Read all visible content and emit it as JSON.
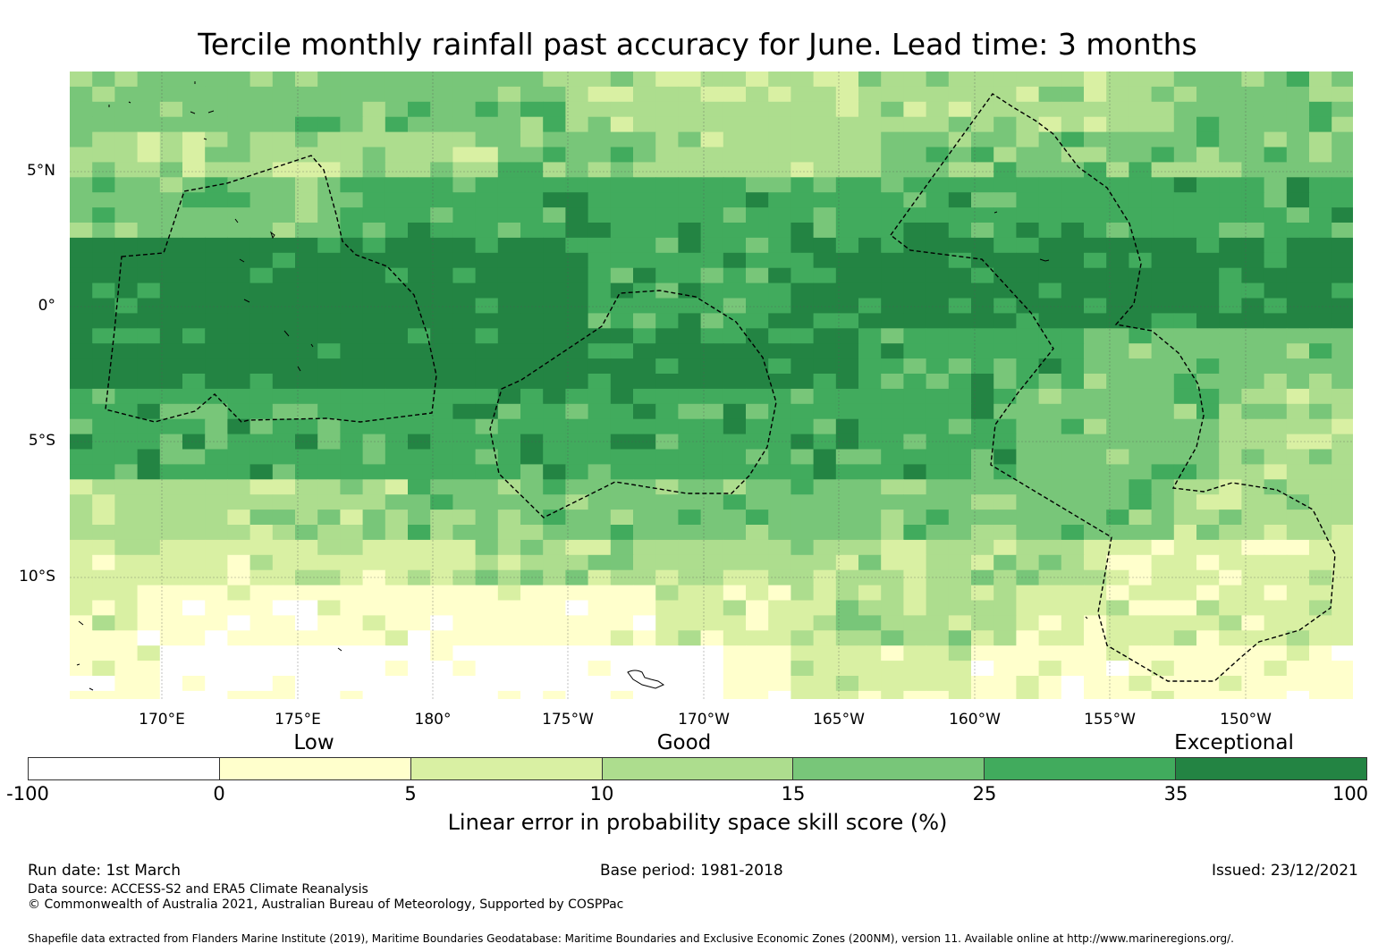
{
  "title": "Tercile monthly rainfall past accuracy for June. Lead time: 3 months",
  "map": {
    "lon_labels": [
      "170°E",
      "175°E",
      "180°",
      "175°W",
      "170°W",
      "165°W",
      "160°W",
      "155°W",
      "150°W"
    ],
    "lat_labels": [
      "5°N",
      "0°",
      "5°S",
      "10°S"
    ],
    "colors": [
      "#ffffff",
      "#ffffcc",
      "#d9f0a3",
      "#addd8e",
      "#78c679",
      "#41ab5d",
      "#238443"
    ]
  },
  "legend": {
    "categories": [
      "Low",
      "Good",
      "Exceptional"
    ],
    "bounds": [
      "-100",
      "0",
      "5",
      "10",
      "15",
      "25",
      "35",
      "100"
    ],
    "colors": [
      "#ffffff",
      "#ffffcc",
      "#d9f0a3",
      "#addd8e",
      "#78c679",
      "#41ab5d",
      "#238443"
    ],
    "title": "Linear error in probability space skill score (%)"
  },
  "footer": {
    "run_date": "Run date: 1st March",
    "base_period": "Base period: 1981-2018",
    "issued": "Issued: 23/12/2021",
    "data_source": "Data source: ACCESS-S2 and ERA5 Climate Reanalysis",
    "copyright": "© Commonwealth of Australia 2021, Australian Bureau of Meteorology, Supported by COSPPac",
    "shapefile": "Shapefile data extracted from Flanders Marine Institute (2019), Maritime Boundaries Geodatabase: Maritime Boundaries and Exclusive Economic Zones (200NM), version 11. Available online at http://www.marineregions.org/."
  }
}
